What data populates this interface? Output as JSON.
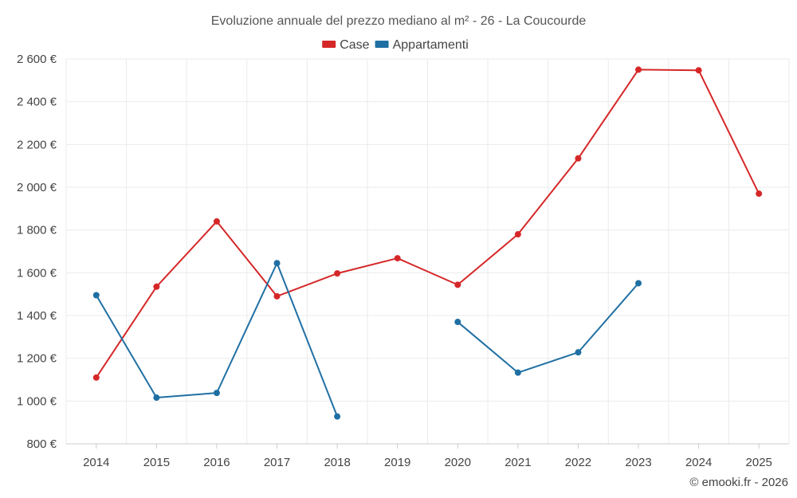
{
  "chart_data": {
    "type": "line",
    "title": "Evoluzione annuale del prezzo mediano al m² - 26 - La Coucourde",
    "categories": [
      "2014",
      "2015",
      "2016",
      "2017",
      "2018",
      "2019",
      "2020",
      "2021",
      "2022",
      "2023",
      "2024",
      "2025"
    ],
    "ylim": [
      800,
      2600
    ],
    "yticks": [
      800,
      1000,
      1200,
      1400,
      1600,
      1800,
      2000,
      2200,
      2400,
      2600
    ],
    "ytick_labels": [
      "800 €",
      "1 000 €",
      "1 200 €",
      "1 400 €",
      "1 600 €",
      "1 800 €",
      "2 000 €",
      "2 200 €",
      "2 400 €",
      "2 600 €"
    ],
    "grid": true,
    "legend_position": "top-center",
    "series": [
      {
        "name": "Case",
        "color": "#d62728",
        "values": [
          1110,
          1535,
          1840,
          1490,
          1597,
          1668,
          1544,
          1780,
          2135,
          2550,
          2547,
          1970
        ]
      },
      {
        "name": "Appartamenti",
        "color": "#1f6fa3",
        "values": [
          1495,
          1016,
          1038,
          1645,
          928,
          null,
          1370,
          1133,
          1228,
          1551,
          null,
          null
        ]
      }
    ]
  },
  "credit": "© emooki.fr - 2026"
}
